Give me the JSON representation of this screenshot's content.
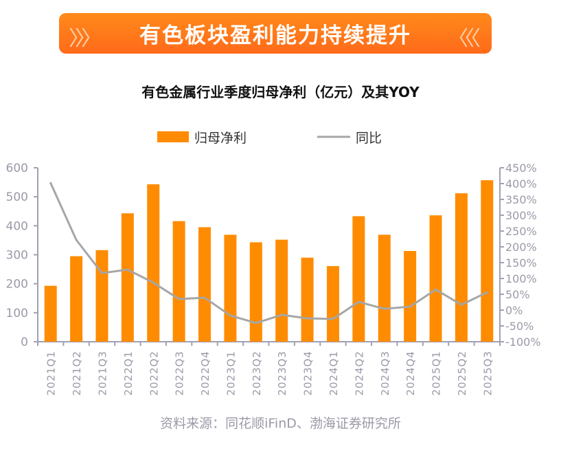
{
  "banner": {
    "text": "有色板块盈利能力持续提升",
    "left_icon": "double-chevron-right-icon",
    "right_icon": "double-chevron-left-icon"
  },
  "chart_data": {
    "type": "bar+line",
    "title": "有色金属行业季度归母净利（亿元）及其YOY",
    "categories": [
      "2021Q1",
      "2021Q2",
      "2021Q3",
      "2022Q1",
      "2022Q2",
      "2022Q3",
      "2022Q4",
      "2023Q1",
      "2023Q2",
      "2023Q3",
      "2023Q4",
      "2024Q1",
      "2024Q2",
      "2024Q3",
      "2024Q4",
      "2025Q1",
      "2025Q2",
      "2025Q3"
    ],
    "series": [
      {
        "name": "归母净利",
        "type": "bar",
        "axis": "left",
        "color": "#ff8c00",
        "values": [
          193,
          295,
          316,
          443,
          543,
          416,
          395,
          369,
          343,
          352,
          290,
          261,
          433,
          369,
          313,
          436,
          512,
          557
        ]
      },
      {
        "name": "同比",
        "type": "line",
        "axis": "right",
        "color": "#a6a6a6",
        "values": [
          402,
          222,
          117,
          128,
          87,
          35,
          39,
          -17,
          -41,
          -15,
          -26,
          -28,
          26,
          4,
          11,
          65,
          17,
          56
        ]
      }
    ],
    "left_axis": {
      "ylim": [
        0,
        600
      ],
      "ticks": [
        "0",
        "100",
        "200",
        "300",
        "400",
        "500",
        "600"
      ]
    },
    "right_axis": {
      "ylim": [
        -100,
        450
      ],
      "ticks": [
        "-100%",
        "-50%",
        "0%",
        "50%",
        "100%",
        "150%",
        "200%",
        "250%",
        "300%",
        "350%",
        "400%",
        "450%"
      ]
    },
    "legend": "top",
    "grid": false
  },
  "source": "资料来源：同花顺iFinD、渤海证券研究所"
}
